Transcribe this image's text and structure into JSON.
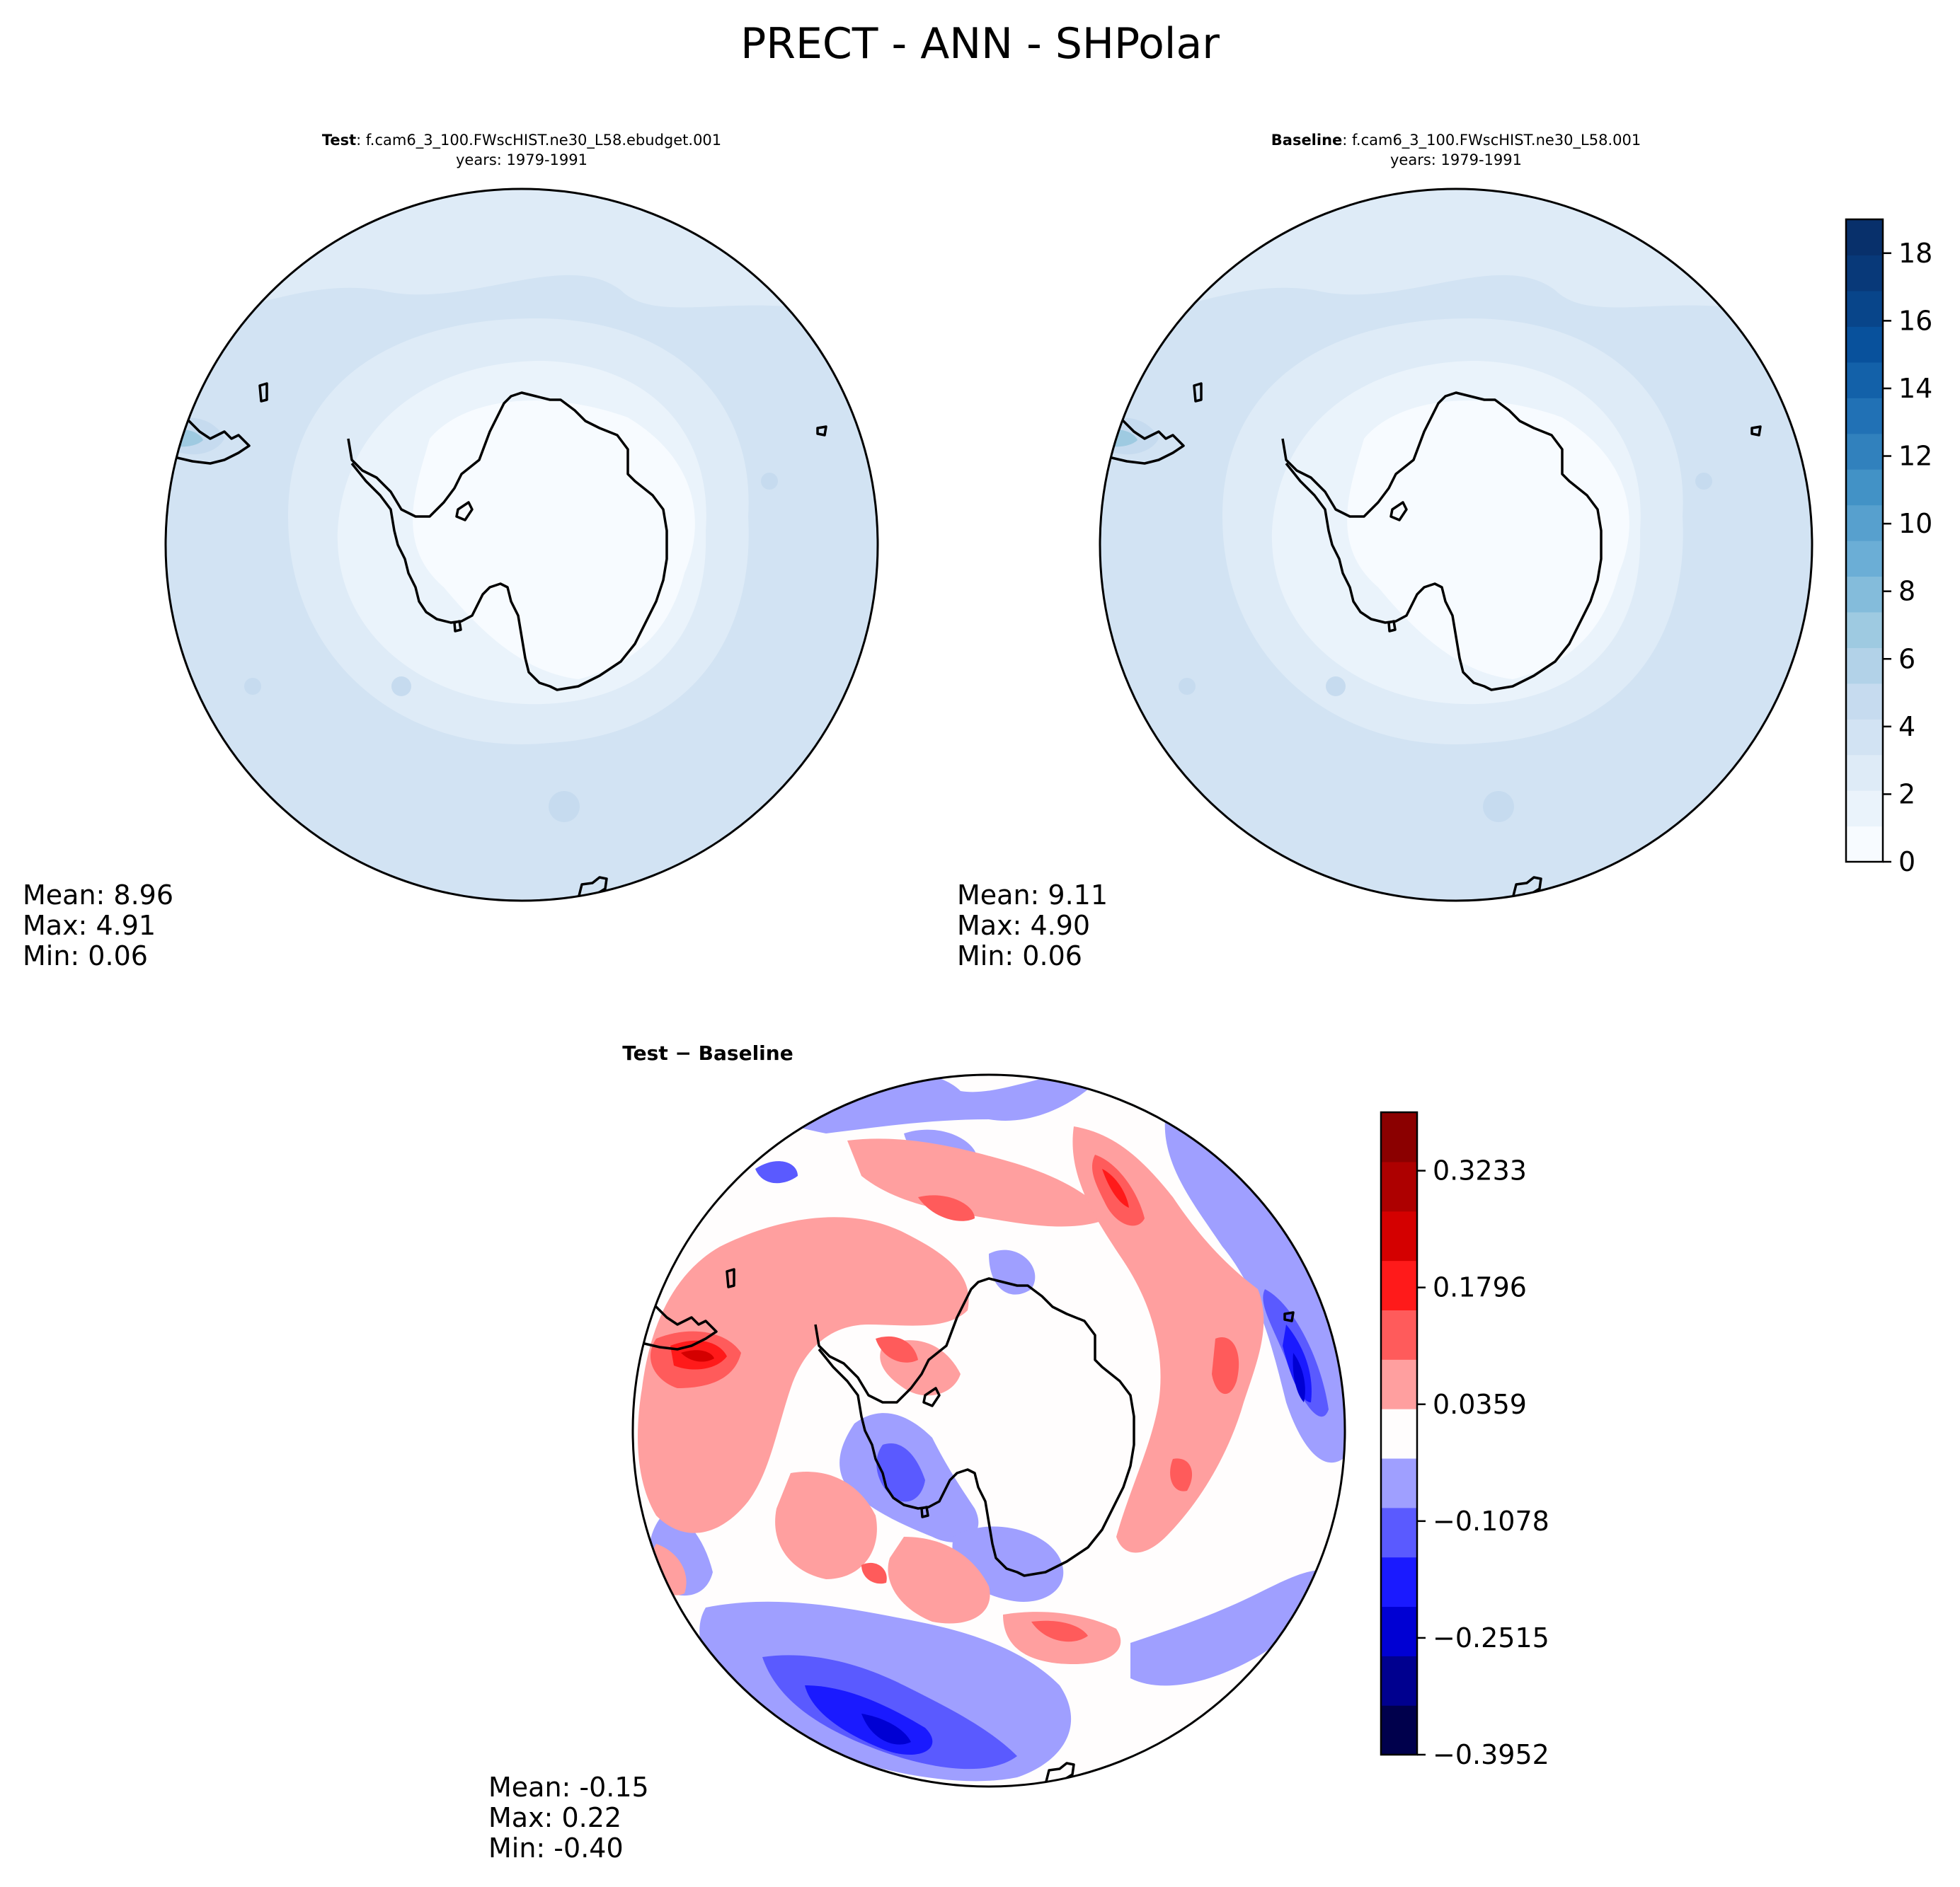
{
  "title": "PRECT - ANN - SHPolar",
  "colors": {
    "blues": [
      "#f7fbff",
      "#eaf3fb",
      "#deebf7",
      "#d2e3f3",
      "#c6dbef",
      "#b2d2e8",
      "#9ecae1",
      "#84bcdb",
      "#6baed6",
      "#57a0ce",
      "#4292c6",
      "#3181bd",
      "#2171b5",
      "#1361a9",
      "#08519c",
      "#08458a",
      "#083979",
      "#08306b"
    ],
    "diverging": [
      "#00004c",
      "#00008f",
      "#0000d3",
      "#1a1aff",
      "#5a5aff",
      "#9f9fff",
      "#fffdfd",
      "#ff9f9f",
      "#ff5b5b",
      "#ff1a1a",
      "#d40000",
      "#ad0000",
      "#8b0000"
    ],
    "coast": "#000000",
    "ring": "#000000"
  },
  "panels": {
    "test": {
      "label_bold": "Test",
      "label_rest": ": f.cam6_3_100.FWscHIST.ne30_L58.ebudget.001",
      "years": "years: 1979-1991",
      "stats": {
        "mean": "Mean:  8.96",
        "max": "Max:  4.91",
        "min": "Min:  0.06"
      }
    },
    "baseline": {
      "label_bold": "Baseline",
      "label_rest": ": f.cam6_3_100.FWscHIST.ne30_L58.001",
      "years": "years: 1979-1991",
      "stats": {
        "mean": "Mean:  9.11",
        "max": "Max:  4.90",
        "min": "Min:  0.06"
      }
    },
    "diff": {
      "label_bold": "Test",
      "label_rest": " − Baseline",
      "stats": {
        "mean": "Mean: -0.15",
        "max": "Max:  0.22",
        "min": "Min: -0.40"
      }
    }
  },
  "chart_data": [
    {
      "type": "heatmap",
      "name": "test",
      "title": "Test : f.cam6_3_100.FWscHIST.ne30_L58.ebudget.001",
      "subtitle": "years: 1979-1991",
      "projection": "South polar stereographic",
      "stats": {
        "mean": 8.96,
        "max": 4.91,
        "min": 0.06
      }
    },
    {
      "type": "heatmap",
      "name": "baseline",
      "title": "Baseline : f.cam6_3_100.FWscHIST.ne30_L58.001",
      "subtitle": "years: 1979-1991",
      "projection": "South polar stereographic",
      "stats": {
        "mean": 9.11,
        "max": 4.9,
        "min": 0.06
      },
      "colorbar": {
        "range": [
          0,
          19
        ],
        "levels": 18,
        "ticks": [
          0,
          2,
          4,
          6,
          8,
          10,
          12,
          14,
          16,
          18
        ],
        "tick_labels": [
          "0",
          "2",
          "4",
          "6",
          "8",
          "10",
          "12",
          "14",
          "16",
          "18"
        ]
      }
    },
    {
      "type": "heatmap",
      "name": "difference",
      "title": "Test − Baseline",
      "projection": "South polar stereographic",
      "stats": {
        "mean": -0.15,
        "max": 0.22,
        "min": -0.4
      },
      "colorbar": {
        "range": [
          -0.3952,
          0.3952
        ],
        "levels": 13,
        "ticks": [
          -0.3952,
          -0.2515,
          -0.1078,
          0.0359,
          0.1796,
          0.3233
        ],
        "tick_labels": [
          "−0.3952",
          "−0.2515",
          "−0.1078",
          "0.0359",
          "0.1796",
          "0.3233"
        ]
      }
    }
  ]
}
